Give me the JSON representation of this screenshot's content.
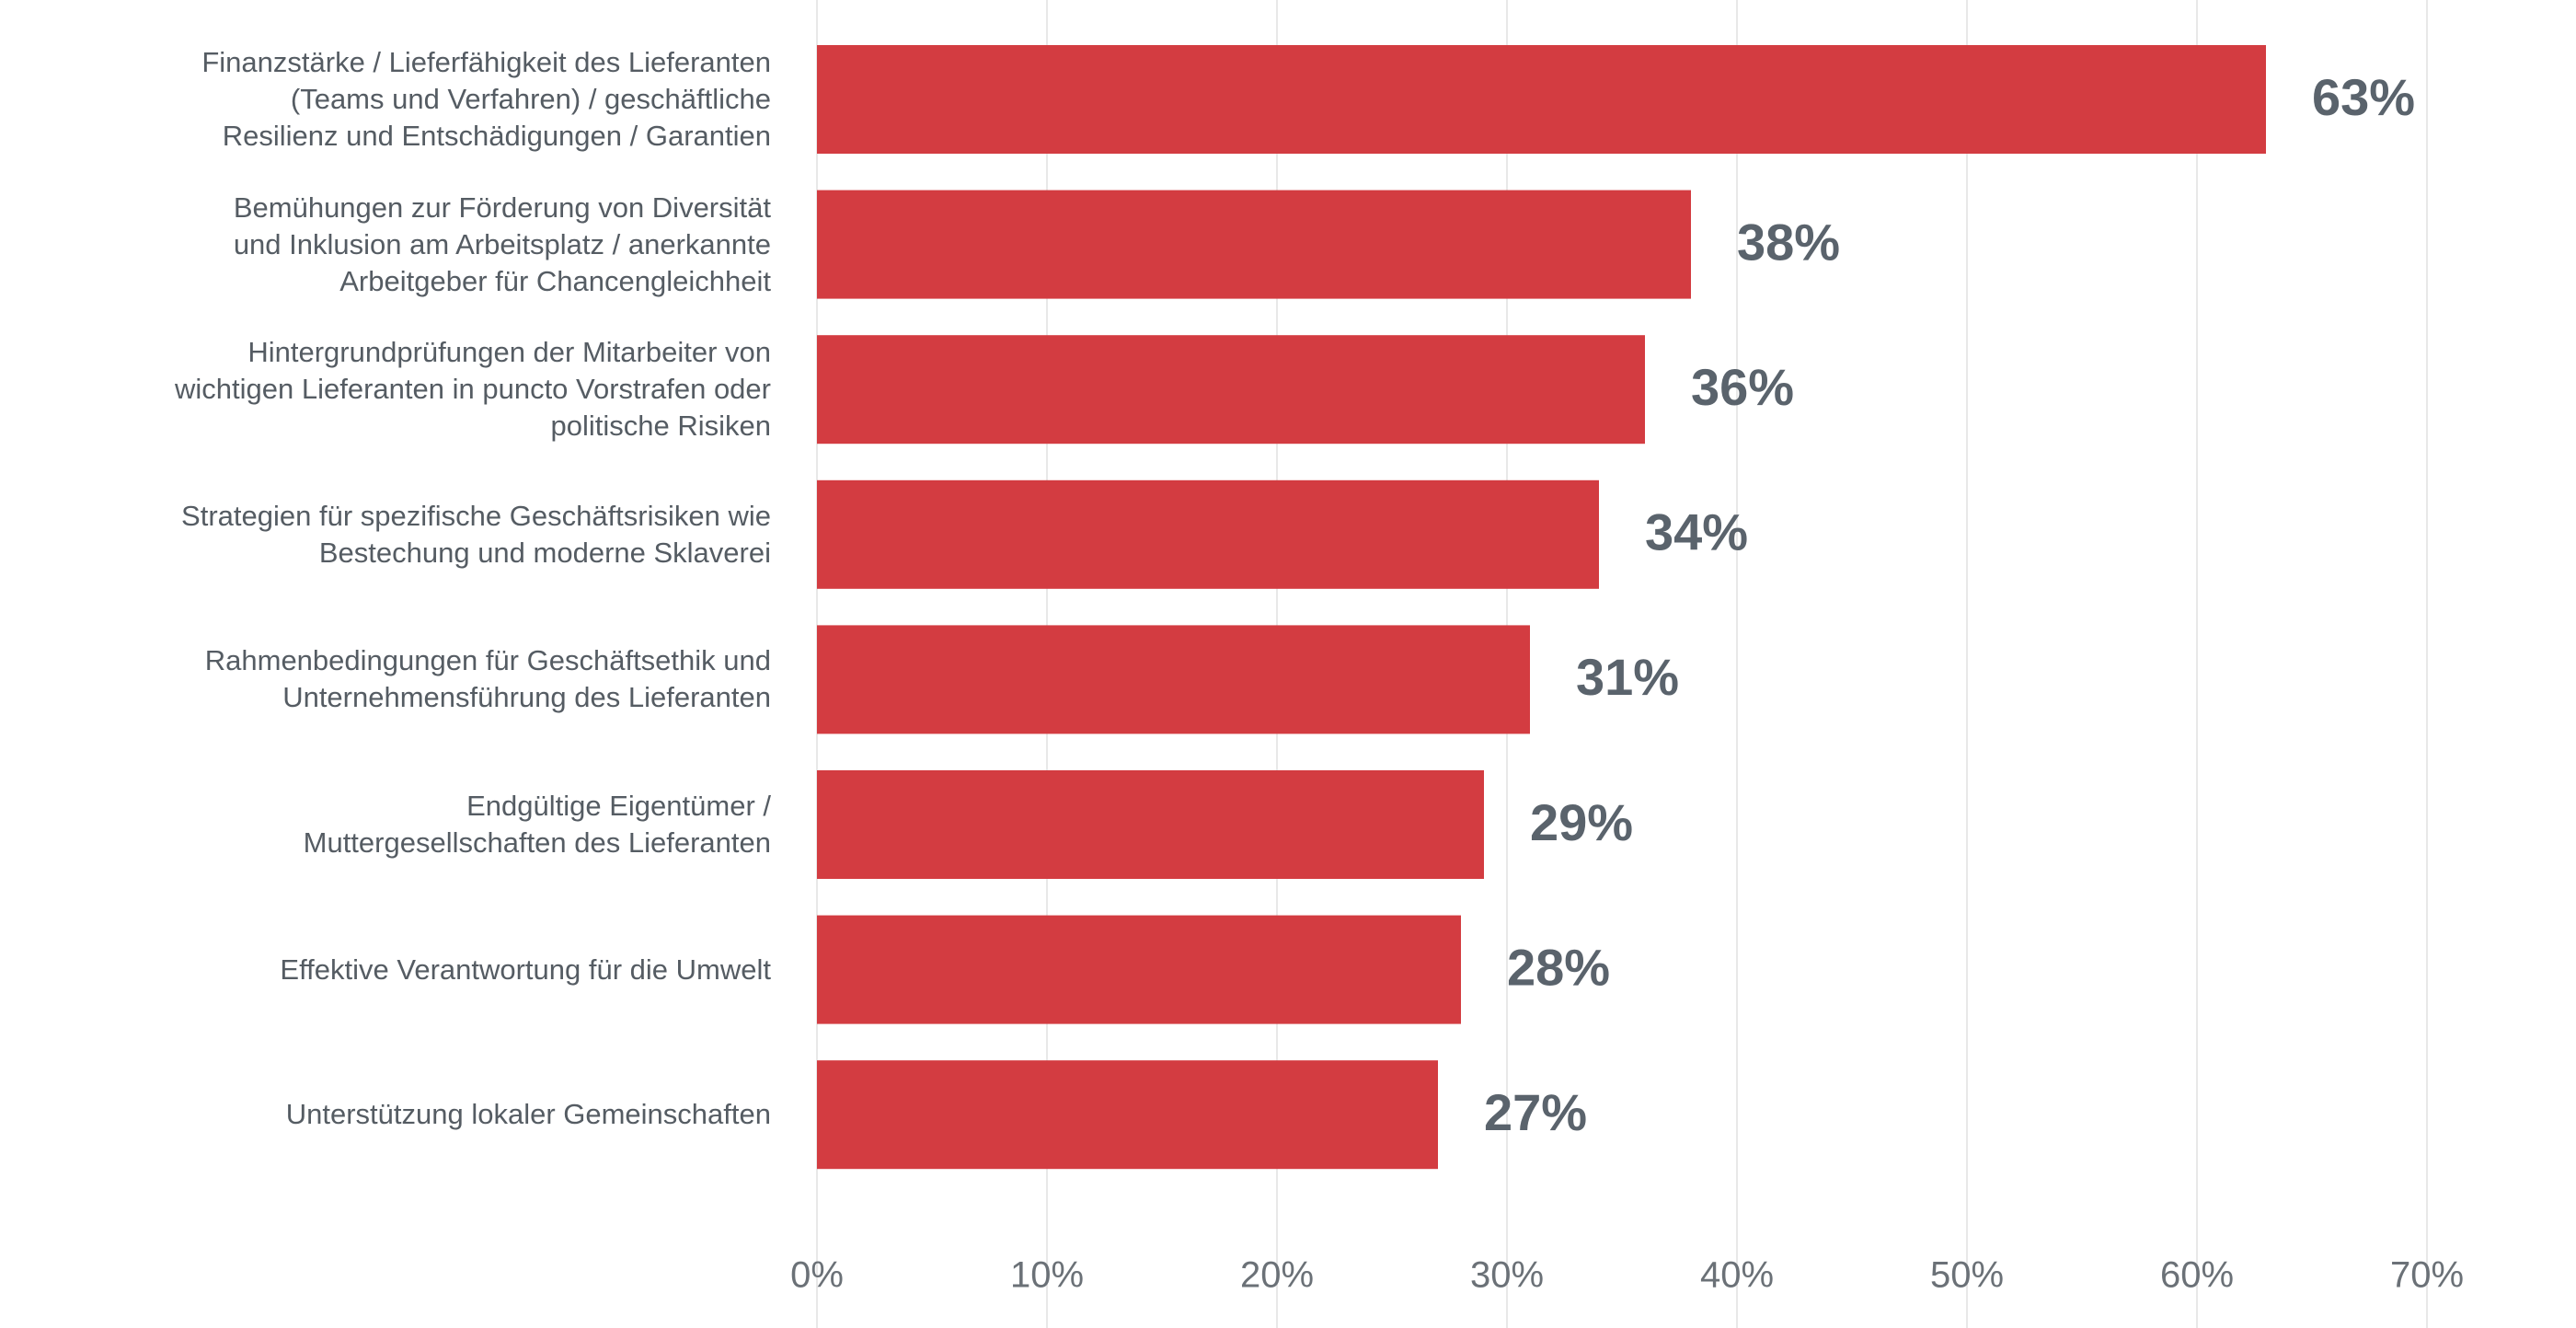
{
  "chart_data": {
    "type": "bar",
    "orientation": "horizontal",
    "categories": [
      "Finanzstärke / Lieferfähigkeit des Lieferanten\n(Teams und Verfahren) / geschäftliche\nResilienz und Entschädigungen / Garantien",
      "Bemühungen zur Förderung von Diversität\nund Inklusion am Arbeitsplatz / anerkannte\nArbeitgeber für Chancengleichheit",
      "Hintergrundprüfungen der Mitarbeiter von\nwichtigen Lieferanten in puncto Vorstrafen oder\npolitische Risiken",
      "Strategien für spezifische Geschäftsrisiken wie\nBestechung und moderne Sklaverei",
      "Rahmenbedingungen für Geschäftsethik und\nUnternehmensführung des Lieferanten",
      "Endgültige Eigentümer /\nMuttergesellschaften des Lieferanten",
      "Effektive Verantwortung für die Umwelt",
      "Unterstützung lokaler Gemeinschaften"
    ],
    "values": [
      63,
      38,
      36,
      34,
      31,
      29,
      28,
      27
    ],
    "value_labels": [
      "63%",
      "38%",
      "36%",
      "34%",
      "31%",
      "29%",
      "28%",
      "27%"
    ],
    "color": "#d33c41",
    "xlim": [
      0,
      70
    ],
    "xticks": [
      {
        "value": 0,
        "label": "0%"
      },
      {
        "value": 10,
        "label": "10%"
      },
      {
        "value": 20,
        "label": "20%"
      },
      {
        "value": 30,
        "label": "30%"
      },
      {
        "value": 40,
        "label": "40%"
      },
      {
        "value": 50,
        "label": "50%"
      },
      {
        "value": 60,
        "label": "60%"
      },
      {
        "value": 70,
        "label": "70%"
      }
    ],
    "grid": true
  }
}
